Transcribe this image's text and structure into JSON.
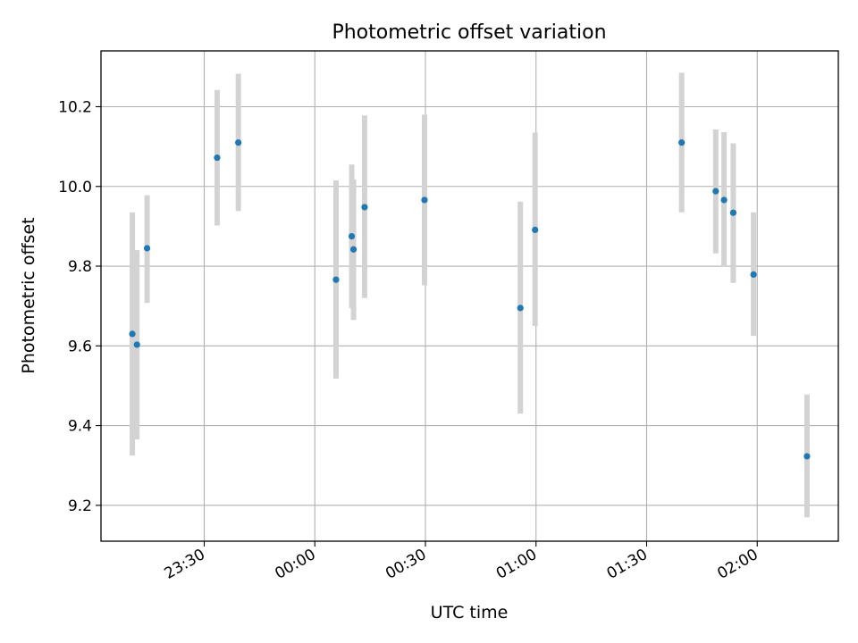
{
  "chart_data": {
    "type": "scatter",
    "title": "Photometric offset variation",
    "xlabel": "UTC time",
    "ylabel": "Photometric offset",
    "x_axis_kind": "time",
    "xlim": [
      "23:02",
      "02:22"
    ],
    "ylim": [
      9.11,
      10.34
    ],
    "grid": true,
    "x_ticks": [
      {
        "value": "23:30",
        "label": "23:30"
      },
      {
        "value": "00:00",
        "label": "00:00"
      },
      {
        "value": "00:30",
        "label": "00:30"
      },
      {
        "value": "01:00",
        "label": "01:00"
      },
      {
        "value": "01:30",
        "label": "01:30"
      },
      {
        "value": "02:00",
        "label": "02:00"
      }
    ],
    "y_ticks": [
      9.2,
      9.4,
      9.6,
      9.8,
      10.0,
      10.2
    ],
    "points": [
      {
        "x": "23:10:30",
        "y": 9.63,
        "err_low": 9.325,
        "err_high": 9.935
      },
      {
        "x": "23:11:45",
        "y": 9.603,
        "err_low": 9.365,
        "err_high": 9.84
      },
      {
        "x": "23:14:30",
        "y": 9.845,
        "err_low": 9.708,
        "err_high": 9.978
      },
      {
        "x": "23:33:30",
        "y": 10.072,
        "err_low": 9.902,
        "err_high": 10.242
      },
      {
        "x": "23:39:15",
        "y": 10.11,
        "err_low": 9.938,
        "err_high": 10.283
      },
      {
        "x": "00:05:45",
        "y": 9.766,
        "err_low": 9.518,
        "err_high": 10.015
      },
      {
        "x": "00:10:00",
        "y": 9.875,
        "err_low": 9.695,
        "err_high": 10.055
      },
      {
        "x": "00:10:30",
        "y": 9.842,
        "err_low": 9.665,
        "err_high": 10.018
      },
      {
        "x": "00:13:30",
        "y": 9.948,
        "err_low": 9.72,
        "err_high": 10.178
      },
      {
        "x": "00:29:45",
        "y": 9.966,
        "err_low": 9.752,
        "err_high": 10.18
      },
      {
        "x": "00:55:45",
        "y": 9.695,
        "err_low": 9.43,
        "err_high": 9.962
      },
      {
        "x": "00:59:45",
        "y": 9.891,
        "err_low": 9.65,
        "err_high": 10.135
      },
      {
        "x": "01:39:30",
        "y": 10.11,
        "err_low": 9.935,
        "err_high": 10.285
      },
      {
        "x": "01:48:45",
        "y": 9.988,
        "err_low": 9.832,
        "err_high": 10.143
      },
      {
        "x": "01:51:00",
        "y": 9.966,
        "err_low": 9.798,
        "err_high": 10.136
      },
      {
        "x": "01:53:30",
        "y": 9.934,
        "err_low": 9.758,
        "err_high": 10.108
      },
      {
        "x": "01:59:00",
        "y": 9.779,
        "err_low": 9.625,
        "err_high": 9.935
      },
      {
        "x": "02:13:30",
        "y": 9.323,
        "err_low": 9.17,
        "err_high": 9.478
      }
    ],
    "marker_color": "#1f77b4",
    "errorbar_color": "#d3d3d3",
    "grid_color": "#b0b0b0"
  }
}
